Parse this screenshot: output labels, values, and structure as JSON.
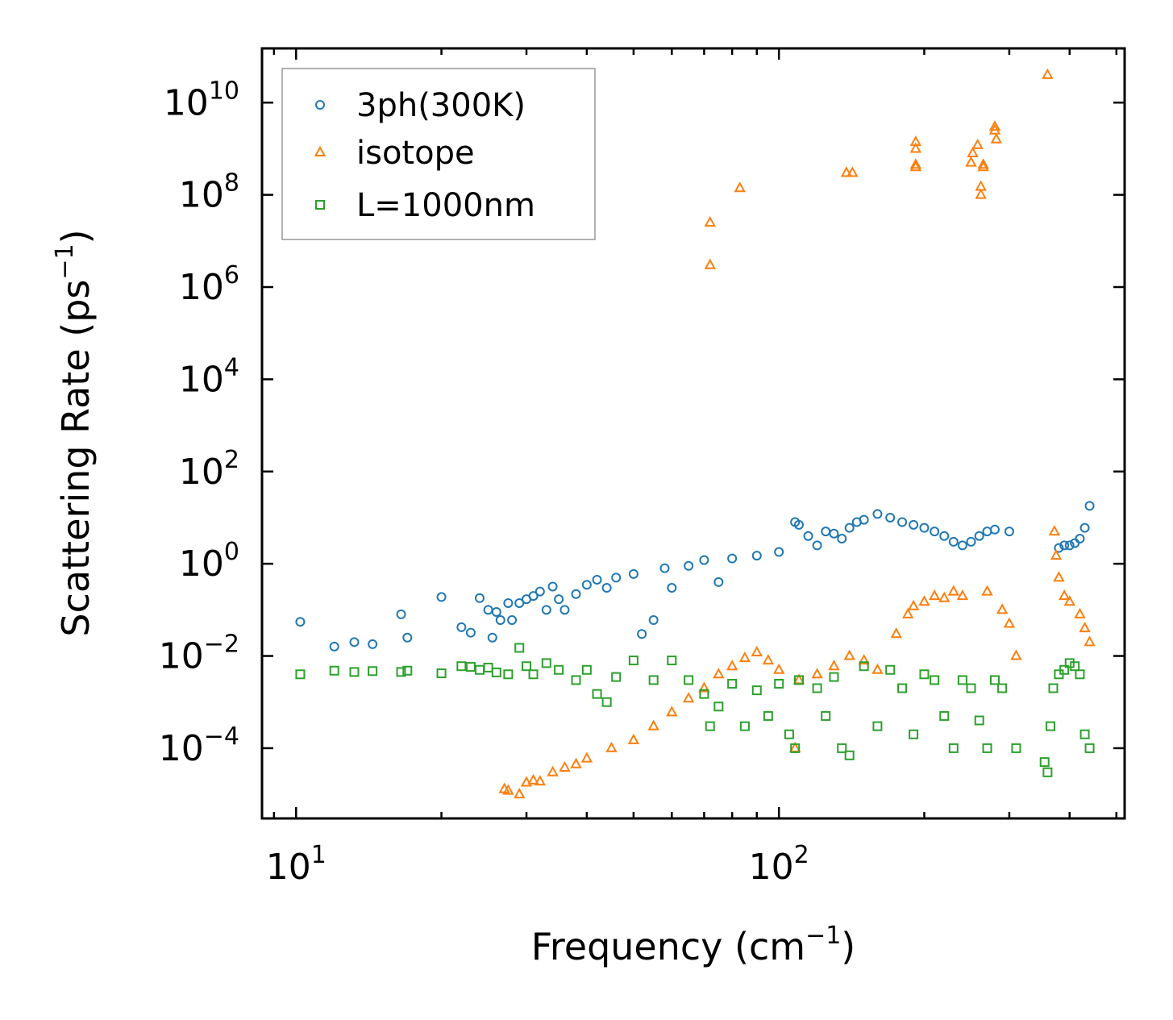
{
  "chart_data": {
    "type": "scatter",
    "xscale": "log",
    "yscale": "log",
    "xlabel": {
      "base": "Frequency (cm",
      "sup": "−1",
      "tail": ")"
    },
    "ylabel": {
      "base": "Scattering Rate (ps",
      "sup": "−1",
      "tail": ")"
    },
    "xlim": [
      8.5,
      520
    ],
    "ylim": [
      3e-06,
      150000000000
    ],
    "legend_position": "top-left",
    "colors": {
      "blue": "#1f77b4",
      "orange": "#ff7f0e",
      "green": "#2ca02c"
    },
    "x_ticks": [
      {
        "value": 10,
        "base": "10",
        "exp": "1"
      },
      {
        "value": 100,
        "base": "10",
        "exp": "2"
      }
    ],
    "y_ticks": [
      {
        "value": 0.0001,
        "base": "10",
        "exp": "−4"
      },
      {
        "value": 0.01,
        "base": "10",
        "exp": "−2"
      },
      {
        "value": 1,
        "base": "10",
        "exp": "0"
      },
      {
        "value": 100,
        "base": "10",
        "exp": "2"
      },
      {
        "value": 10000,
        "base": "10",
        "exp": "4"
      },
      {
        "value": 1000000,
        "base": "10",
        "exp": "6"
      },
      {
        "value": 100000000,
        "base": "10",
        "exp": "8"
      },
      {
        "value": 10000000000,
        "base": "10",
        "exp": "10"
      }
    ],
    "series": [
      {
        "name": "3ph(300K)",
        "marker": "circle",
        "color": "#1f77b4",
        "points": [
          [
            10.2,
            0.055
          ],
          [
            12,
            0.016
          ],
          [
            13.2,
            0.02
          ],
          [
            14.4,
            0.018
          ],
          [
            16.5,
            0.08
          ],
          [
            17,
            0.025
          ],
          [
            20,
            0.19
          ],
          [
            22,
            0.042
          ],
          [
            23,
            0.032
          ],
          [
            24,
            0.18
          ],
          [
            25,
            0.1
          ],
          [
            25.5,
            0.025
          ],
          [
            26,
            0.09
          ],
          [
            26.5,
            0.06
          ],
          [
            27.5,
            0.14
          ],
          [
            28,
            0.06
          ],
          [
            29,
            0.14
          ],
          [
            30,
            0.17
          ],
          [
            31,
            0.2
          ],
          [
            32,
            0.25
          ],
          [
            33,
            0.1
          ],
          [
            34,
            0.32
          ],
          [
            35,
            0.17
          ],
          [
            36,
            0.1
          ],
          [
            38,
            0.22
          ],
          [
            40,
            0.35
          ],
          [
            42,
            0.45
          ],
          [
            44,
            0.3
          ],
          [
            46,
            0.5
          ],
          [
            50,
            0.6
          ],
          [
            52,
            0.03
          ],
          [
            55,
            0.06
          ],
          [
            58,
            0.8
          ],
          [
            60,
            0.3
          ],
          [
            65,
            0.9
          ],
          [
            70,
            1.2
          ],
          [
            75,
            0.4
          ],
          [
            80,
            1.3
          ],
          [
            90,
            1.5
          ],
          [
            100,
            1.8
          ],
          [
            108,
            8
          ],
          [
            110,
            7
          ],
          [
            115,
            4
          ],
          [
            120,
            2.5
          ],
          [
            125,
            5
          ],
          [
            130,
            4.5
          ],
          [
            135,
            3.5
          ],
          [
            140,
            6
          ],
          [
            145,
            8
          ],
          [
            150,
            9
          ],
          [
            160,
            12
          ],
          [
            170,
            10
          ],
          [
            180,
            8
          ],
          [
            190,
            7
          ],
          [
            200,
            6
          ],
          [
            210,
            5
          ],
          [
            220,
            4
          ],
          [
            230,
            3
          ],
          [
            240,
            2.5
          ],
          [
            250,
            3
          ],
          [
            260,
            4
          ],
          [
            270,
            5
          ],
          [
            280,
            5.5
          ],
          [
            300,
            5
          ],
          [
            380,
            2.2
          ],
          [
            390,
            2.5
          ],
          [
            400,
            2.5
          ],
          [
            410,
            2.8
          ],
          [
            420,
            3.5
          ],
          [
            430,
            6
          ],
          [
            440,
            18
          ]
        ]
      },
      {
        "name": "isotope",
        "marker": "triangle",
        "color": "#ff7f0e",
        "points": [
          [
            27,
            1.3e-05
          ],
          [
            27.5,
            1.2e-05
          ],
          [
            29,
            1e-05
          ],
          [
            30,
            1.8e-05
          ],
          [
            31,
            2e-05
          ],
          [
            32,
            1.9e-05
          ],
          [
            34,
            3e-05
          ],
          [
            36,
            3.8e-05
          ],
          [
            38,
            4.5e-05
          ],
          [
            40,
            6e-05
          ],
          [
            45,
            0.0001
          ],
          [
            50,
            0.00015
          ],
          [
            55,
            0.0003
          ],
          [
            60,
            0.0006
          ],
          [
            65,
            0.0012
          ],
          [
            70,
            0.002
          ],
          [
            72,
            25000000
          ],
          [
            72,
            3000000
          ],
          [
            75,
            0.004
          ],
          [
            80,
            0.006
          ],
          [
            83,
            140000000
          ],
          [
            85,
            0.009
          ],
          [
            90,
            0.012
          ],
          [
            95,
            0.008
          ],
          [
            100,
            0.005
          ],
          [
            108,
            0.0001
          ],
          [
            110,
            0.003
          ],
          [
            120,
            0.004
          ],
          [
            130,
            0.006
          ],
          [
            140,
            0.01
          ],
          [
            138,
            300000000
          ],
          [
            142,
            300000000
          ],
          [
            150,
            0.008
          ],
          [
            160,
            0.005
          ],
          [
            175,
            0.03
          ],
          [
            185,
            0.08
          ],
          [
            190,
            0.12
          ],
          [
            192,
            1400000000
          ],
          [
            192,
            1000000000
          ],
          [
            192,
            450000000
          ],
          [
            192,
            400000000
          ],
          [
            200,
            0.15
          ],
          [
            210,
            0.2
          ],
          [
            220,
            0.18
          ],
          [
            230,
            0.25
          ],
          [
            240,
            0.2
          ],
          [
            250,
            500000000
          ],
          [
            252,
            800000000
          ],
          [
            258,
            1200000000
          ],
          [
            262,
            150000000
          ],
          [
            262,
            100000000
          ],
          [
            265,
            450000000
          ],
          [
            265,
            400000000
          ],
          [
            270,
            0.25
          ],
          [
            280,
            3000000000
          ],
          [
            280,
            2500000000
          ],
          [
            282,
            1600000000
          ],
          [
            290,
            0.1
          ],
          [
            300,
            0.05
          ],
          [
            310,
            0.01
          ],
          [
            360,
            40000000000
          ],
          [
            372,
            5
          ],
          [
            375,
            1.5
          ],
          [
            380,
            0.5
          ],
          [
            390,
            0.2
          ],
          [
            400,
            0.15
          ],
          [
            420,
            0.08
          ],
          [
            430,
            0.04
          ],
          [
            440,
            0.02
          ]
        ]
      },
      {
        "name": "L=1000nm",
        "marker": "square",
        "color": "#2ca02c",
        "points": [
          [
            10.2,
            0.004
          ],
          [
            12,
            0.0048
          ],
          [
            13.2,
            0.0045
          ],
          [
            14.4,
            0.0047
          ],
          [
            16.5,
            0.0045
          ],
          [
            17,
            0.0048
          ],
          [
            20,
            0.0042
          ],
          [
            22,
            0.006
          ],
          [
            23,
            0.0058
          ],
          [
            24,
            0.005
          ],
          [
            25,
            0.0056
          ],
          [
            26,
            0.0044
          ],
          [
            27.5,
            0.004
          ],
          [
            29,
            0.015
          ],
          [
            30,
            0.006
          ],
          [
            31,
            0.004
          ],
          [
            33,
            0.007
          ],
          [
            35,
            0.005
          ],
          [
            38,
            0.003
          ],
          [
            40,
            0.005
          ],
          [
            42,
            0.0015
          ],
          [
            44,
            0.001
          ],
          [
            46,
            0.0035
          ],
          [
            50,
            0.008
          ],
          [
            55,
            0.003
          ],
          [
            60,
            0.008
          ],
          [
            65,
            0.003
          ],
          [
            70,
            0.0015
          ],
          [
            72,
            0.0003
          ],
          [
            75,
            0.0008
          ],
          [
            80,
            0.0025
          ],
          [
            85,
            0.0003
          ],
          [
            90,
            0.0018
          ],
          [
            95,
            0.0005
          ],
          [
            100,
            0.0025
          ],
          [
            105,
            0.0002
          ],
          [
            108,
            0.0001
          ],
          [
            110,
            0.003
          ],
          [
            120,
            0.002
          ],
          [
            125,
            0.0005
          ],
          [
            130,
            0.0035
          ],
          [
            135,
            0.0001
          ],
          [
            140,
            7e-05
          ],
          [
            150,
            0.006
          ],
          [
            160,
            0.0003
          ],
          [
            170,
            0.005
          ],
          [
            180,
            0.002
          ],
          [
            190,
            0.0002
          ],
          [
            200,
            0.004
          ],
          [
            210,
            0.003
          ],
          [
            220,
            0.0005
          ],
          [
            230,
            0.0001
          ],
          [
            240,
            0.003
          ],
          [
            250,
            0.002
          ],
          [
            260,
            0.0004
          ],
          [
            270,
            0.0001
          ],
          [
            280,
            0.003
          ],
          [
            290,
            0.002
          ],
          [
            310,
            0.0001
          ],
          [
            355,
            5e-05
          ],
          [
            360,
            3e-05
          ],
          [
            365,
            0.0003
          ],
          [
            370,
            0.002
          ],
          [
            380,
            0.004
          ],
          [
            390,
            0.005
          ],
          [
            400,
            0.007
          ],
          [
            410,
            0.006
          ],
          [
            420,
            0.004
          ],
          [
            430,
            0.0002
          ],
          [
            440,
            0.0001
          ]
        ]
      }
    ]
  }
}
